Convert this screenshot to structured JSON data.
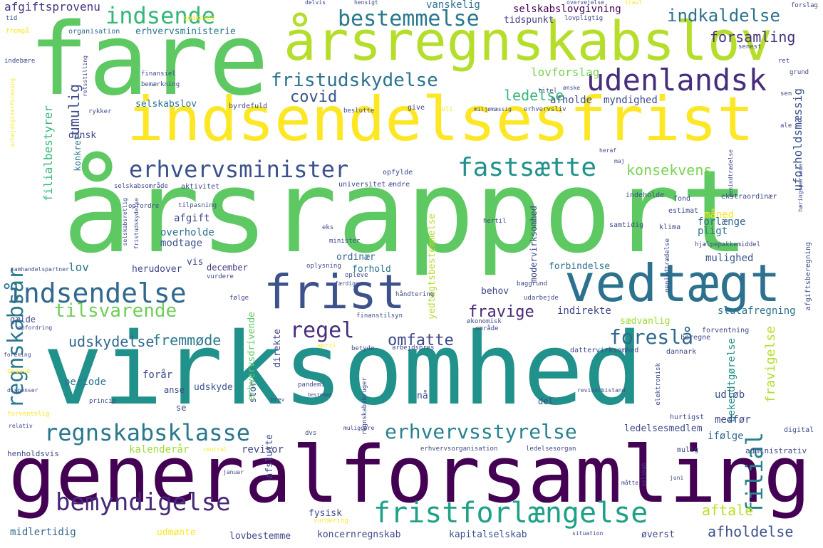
{
  "words": [
    {
      "text": "årsrapport",
      "color": "#5ec962"
    },
    {
      "text": "virksomhed",
      "color": "#21918c"
    },
    {
      "text": "generalforsamling",
      "color": "#440154"
    },
    {
      "text": "fare",
      "color": "#5ec962"
    },
    {
      "text": "indsendelsesfrist",
      "color": "#fde725"
    },
    {
      "text": "årsregnskabslov",
      "color": "#b5de2b"
    },
    {
      "text": "vedtægt",
      "color": "#2c728e"
    },
    {
      "text": "frist",
      "color": "#3b528b"
    },
    {
      "text": "udenlandsk",
      "color": "#472d7b"
    },
    {
      "text": "fristforlængelse",
      "color": "#1fa187"
    },
    {
      "text": "indsendelse",
      "color": "#31688e"
    },
    {
      "text": "bemyndigelse",
      "color": "#482878"
    },
    {
      "text": "regnskabsklasse",
      "color": "#2a788e"
    },
    {
      "text": "erhvervsminister",
      "color": "#3b528b"
    },
    {
      "text": "fastsætte",
      "color": "#21918c"
    },
    {
      "text": "bestemmelse",
      "color": "#2a788e"
    },
    {
      "text": "indsende",
      "color": "#35b779"
    },
    {
      "text": "regnskabsår",
      "color": "#2a788e"
    },
    {
      "text": "tilsvarende",
      "color": "#6ece58"
    },
    {
      "text": "regel",
      "color": "#472d7b"
    },
    {
      "text": "erhvervsstyrelse",
      "color": "#26828e"
    },
    {
      "text": "filial",
      "color": "#26828e"
    },
    {
      "text": "foreslå",
      "color": "#31688e"
    },
    {
      "text": "fristudskydelse",
      "color": "#2c728e"
    },
    {
      "text": "indkaldelse",
      "color": "#2c728e"
    },
    {
      "text": "forsamling",
      "color": "#46337e"
    },
    {
      "text": "ledelse",
      "color": "#35b779"
    },
    {
      "text": "covid",
      "color": "#3b528b"
    },
    {
      "text": "umulig",
      "color": "#3e4989"
    },
    {
      "text": "konsekvens",
      "color": "#7ad151"
    },
    {
      "text": "omfatte",
      "color": "#3e4989"
    },
    {
      "text": "fravige",
      "color": "#482878"
    },
    {
      "text": "udskydelse",
      "color": "#31688e"
    },
    {
      "text": "fremmøde",
      "color": "#2a788e"
    },
    {
      "text": "aftale",
      "color": "#bddf26"
    },
    {
      "text": "afholdelse",
      "color": "#3b528b"
    },
    {
      "text": "lovforslag",
      "color": "#7ad151"
    },
    {
      "text": "afholde",
      "color": "#3e4989"
    },
    {
      "text": "myndighed",
      "color": "#3e4989"
    },
    {
      "text": "selskabslov",
      "color": "#2c728e"
    },
    {
      "text": "filialbestyrer",
      "color": "#35b779"
    },
    {
      "text": "vanskelig",
      "color": "#2c728e"
    },
    {
      "text": "selskabslovgivning",
      "color": "#440154"
    },
    {
      "text": "tidspunkt",
      "color": "#433e85"
    },
    {
      "text": "erhvervsministerie",
      "color": "#2a788e"
    },
    {
      "text": "afgiftsprovenu",
      "color": "#46337e"
    },
    {
      "text": "organisation",
      "color": "#31688e"
    },
    {
      "text": "uforholdsmæssig",
      "color": "#3b528b"
    },
    {
      "text": "dansk",
      "color": "#3e4989"
    },
    {
      "text": "konkret",
      "color": "#2c728e"
    },
    {
      "text": "måned",
      "color": "#fde725"
    },
    {
      "text": "forlænge",
      "color": "#31688e"
    },
    {
      "text": "pligt",
      "color": "#2c728e"
    },
    {
      "text": "afgift",
      "color": "#3e4989"
    },
    {
      "text": "overholde",
      "color": "#2c728e"
    },
    {
      "text": "modtage",
      "color": "#3b528b"
    },
    {
      "text": "lov",
      "color": "#2a788e"
    },
    {
      "text": "herudover",
      "color": "#3e4989"
    },
    {
      "text": "vis",
      "color": "#3e4989"
    },
    {
      "text": "december",
      "color": "#46337e"
    },
    {
      "text": "ordinær",
      "color": "#31688e"
    },
    {
      "text": "forhold",
      "color": "#2c728e"
    },
    {
      "text": "mulighed",
      "color": "#3b528b"
    },
    {
      "text": "forbindelse",
      "color": "#2c728e"
    },
    {
      "text": "behov",
      "color": "#3e4989"
    },
    {
      "text": "indirekte",
      "color": "#3e4989"
    },
    {
      "text": "slutafregning",
      "color": "#2c728e"
    },
    {
      "text": "fravigelse",
      "color": "#b5de2b"
    },
    {
      "text": "bekendtgørelse",
      "color": "#21918c"
    },
    {
      "text": "udløb",
      "color": "#3b528b"
    },
    {
      "text": "medfør",
      "color": "#3e4989"
    },
    {
      "text": "ifølge",
      "color": "#31688e"
    },
    {
      "text": "ledelsesmedlem",
      "color": "#3e4989"
    },
    {
      "text": "periode",
      "color": "#2c728e"
    },
    {
      "text": "forår",
      "color": "#3e4989"
    },
    {
      "text": "anse",
      "color": "#3e4989"
    },
    {
      "text": "se",
      "color": "#3e4989"
    },
    {
      "text": "udskyde",
      "color": "#3b528b"
    },
    {
      "text": "stor",
      "color": "#3e4989"
    },
    {
      "text": "nå",
      "color": "#3e4989"
    },
    {
      "text": "del",
      "color": "#3e4989"
    },
    {
      "text": "revisor",
      "color": "#3e4989"
    },
    {
      "text": "kalenderår",
      "color": "#a0da39"
    },
    {
      "text": "fysisk",
      "color": "#3e4989"
    },
    {
      "text": "midlertidig",
      "color": "#31688e"
    },
    {
      "text": "udmønte",
      "color": "#fde725"
    },
    {
      "text": "lovbestemme",
      "color": "#3e4989"
    },
    {
      "text": "koncernregnskab",
      "color": "#3e4989"
    },
    {
      "text": "kapitalselskab",
      "color": "#3b528b"
    },
    {
      "text": "øverst",
      "color": "#3e4989"
    },
    {
      "text": "gælde",
      "color": "#3e4989"
    },
    {
      "text": "direkte",
      "color": "#3e4989"
    },
    {
      "text": "afslutte",
      "color": "#3e4989"
    },
    {
      "text": "erhvervsdrivende",
      "color": "#5ec962"
    },
    {
      "text": "yedtægtsbestemmelse",
      "color": "#b5de2b"
    },
    {
      "text": "modervirksomhed",
      "color": "#3e4989"
    },
    {
      "text": "henholdsvis",
      "color": "#3e4989"
    },
    {
      "text": "mulig",
      "color": "#3e4989"
    },
    {
      "text": "administrativ",
      "color": "#3e4989"
    },
    {
      "text": "digital",
      "color": "#3e4989"
    },
    {
      "text": "hurtigst",
      "color": "#3e4989"
    },
    {
      "text": "dattervirksomhed",
      "color": "#3e4989"
    },
    {
      "text": "dannark",
      "color": "#3e4989"
    },
    {
      "text": "beregne",
      "color": "#3e4989"
    },
    {
      "text": "forventning",
      "color": "#3e4989"
    },
    {
      "text": "sædvanlig",
      "color": "#a0da39"
    },
    {
      "text": "ekstraordinær",
      "color": "#3e4989"
    },
    {
      "text": "indeholde",
      "color": "#3e4989"
    },
    {
      "text": "fond",
      "color": "#3e4989"
    },
    {
      "text": "estimat",
      "color": "#3e4989"
    },
    {
      "text": "klima",
      "color": "#3e4989"
    },
    {
      "text": "samtidig",
      "color": "#3e4989"
    },
    {
      "text": "hjælpepakkemiddel",
      "color": "#3e4989"
    },
    {
      "text": "afgiftsberegning",
      "color": "#3e4989"
    },
    {
      "text": "genindtrædelse",
      "color": "#3e4989"
    },
    {
      "text": "aktivitet",
      "color": "#3e4989"
    },
    {
      "text": "universitet",
      "color": "#3e4989"
    },
    {
      "text": "ændre",
      "color": "#3e4989"
    },
    {
      "text": "opfylde",
      "color": "#3e4989"
    },
    {
      "text": "selskabsområde",
      "color": "#3e4989"
    },
    {
      "text": "byrdefuld",
      "color": "#3e4989"
    },
    {
      "text": "erhvervsliv",
      "color": "#3e4989"
    },
    {
      "text": "miljømæssig",
      "color": "#3e4989"
    },
    {
      "text": "titel",
      "color": "#3e4989"
    },
    {
      "text": "finansiel",
      "color": "#3e4989"
    },
    {
      "text": "bemærkning",
      "color": "#3e4989"
    },
    {
      "text": "rykker",
      "color": "#3e4989"
    },
    {
      "text": "beslutte",
      "color": "#3e4989"
    },
    {
      "text": "give",
      "color": "#3e4989"
    },
    {
      "text": "juli",
      "color": "#fde725"
    },
    {
      "text": "ønske",
      "color": "#3e4989"
    },
    {
      "text": "senest",
      "color": "#3e4989"
    },
    {
      "text": "ret",
      "color": "#3e4989"
    },
    {
      "text": "grund",
      "color": "#3e4989"
    },
    {
      "text": "sen",
      "color": "#3e4989"
    },
    {
      "text": "ale",
      "color": "#3e4989"
    },
    {
      "text": "heraf",
      "color": "#3e4989"
    },
    {
      "text": "maj",
      "color": "#3e4989"
    },
    {
      "text": "tilpasning",
      "color": "#3e4989"
    },
    {
      "text": "opfordre",
      "color": "#3e4989"
    },
    {
      "text": "selskabsretlig",
      "color": "#3e4989"
    },
    {
      "text": "fristudskydelse",
      "color": "#3e4989"
    },
    {
      "text": "eks",
      "color": "#3e4989"
    },
    {
      "text": "minister",
      "color": "#3e4989"
    },
    {
      "text": "hertil",
      "color": "#3e4989"
    },
    {
      "text": "samhandelspartner",
      "color": "#3e4989"
    },
    {
      "text": "vurdere",
      "color": "#3e4989"
    },
    {
      "text": "følge",
      "color": "#3e4989"
    },
    {
      "text": "oplysning",
      "color": "#3e4989"
    },
    {
      "text": "opleve",
      "color": "#3e4989"
    },
    {
      "text": "færdiggøre",
      "color": "#3e4989"
    },
    {
      "text": "baggrund",
      "color": "#3e4989"
    },
    {
      "text": "håndtering",
      "color": "#3e4989"
    },
    {
      "text": "udarbejde",
      "color": "#3e4989"
    },
    {
      "text": "økonomisk",
      "color": "#3e4989"
    },
    {
      "text": "finanstilsyn",
      "color": "#3e4989"
    },
    {
      "text": "område",
      "color": "#3e4989"
    },
    {
      "text": "april",
      "color": "#fde725"
    },
    {
      "text": "betyde",
      "color": "#3e4989"
    },
    {
      "text": "arbejdspres",
      "color": "#3e4989"
    },
    {
      "text": "opfordring",
      "color": "#3e4989"
    },
    {
      "text": "forening",
      "color": "#3e4989"
    },
    {
      "text": "opgave",
      "color": "#fde725"
    },
    {
      "text": "dispenser",
      "color": "#3e4989"
    },
    {
      "text": "forventelig",
      "color": "#fde725"
    },
    {
      "text": "relativ",
      "color": "#3e4989"
    },
    {
      "text": "princip",
      "color": "#3e4989"
    },
    {
      "text": "brev",
      "color": "#3e4989"
    },
    {
      "text": "pandemi",
      "color": "#3e4989"
    },
    {
      "text": "bestemme",
      "color": "#3e4989"
    },
    {
      "text": "regnskabsbruger",
      "color": "#3e4989"
    },
    {
      "text": "revisorbistand",
      "color": "#3e4989"
    },
    {
      "text": "elektronisk",
      "color": "#3e4989"
    },
    {
      "text": "dvs",
      "color": "#3e4989"
    },
    {
      "text": "muliggøre",
      "color": "#3e4989"
    },
    {
      "text": "central",
      "color": "#fde725"
    },
    {
      "text": "erhvervsorganisation",
      "color": "#3e4989"
    },
    {
      "text": "ledelsesorgan",
      "color": "#3e4989"
    },
    {
      "text": "selskab",
      "color": "#3e4989"
    },
    {
      "text": "januar",
      "color": "#3e4989"
    },
    {
      "text": "måtte",
      "color": "#3e4989"
    },
    {
      "text": "juni",
      "color": "#3e4989"
    },
    {
      "text": "vurdering",
      "color": "#fde725"
    },
    {
      "text": "situation",
      "color": "#3e4989"
    },
    {
      "text": "godkende",
      "color": "#fde725"
    },
    {
      "text": "delvis",
      "color": "#3e4989"
    },
    {
      "text": "hensigt",
      "color": "#3e4989"
    },
    {
      "text": "overvejelse",
      "color": "#3e4989"
    },
    {
      "text": "travl",
      "color": "#fde725"
    },
    {
      "text": "forslag",
      "color": "#3e4989"
    },
    {
      "text": "tid",
      "color": "#3e4989"
    },
    {
      "text": "fremgå",
      "color": "#fde725"
    },
    {
      "text": "lovpligtig",
      "color": "#3e4989"
    },
    {
      "text": "indebære",
      "color": "#3e4989"
    },
    {
      "text": "retsstilling",
      "color": "#3e4989"
    },
    {
      "text": "arbejdsgiverforening",
      "color": "#fde725"
    },
    {
      "text": "hæringsperiode",
      "color": "#3e4989"
    },
    {
      "text": "genindtrædelse",
      "color": "#3e4989"
    }
  ]
}
